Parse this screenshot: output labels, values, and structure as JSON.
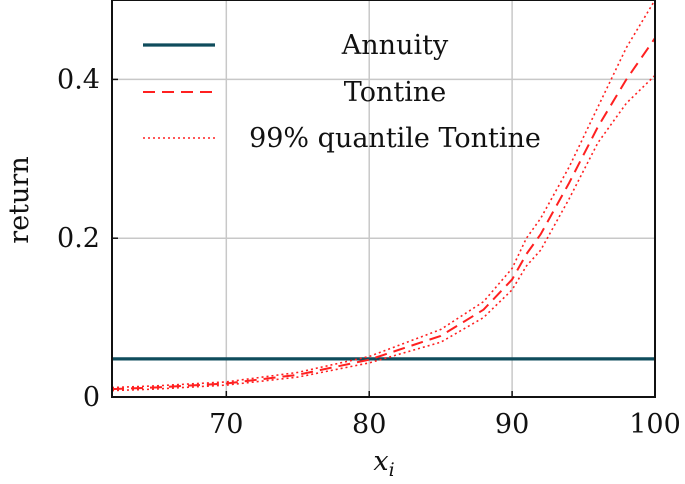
{
  "chart_data": {
    "type": "line",
    "title": "",
    "xlabel": "x_i",
    "xlabel_base": "x",
    "xlabel_sub": "i",
    "ylabel": "return",
    "xlim": [
      62,
      100
    ],
    "ylim": [
      0,
      0.5
    ],
    "xticks": [
      70,
      80,
      90,
      100
    ],
    "xtick_labels": [
      "70",
      "80",
      "90",
      "100"
    ],
    "yticks": [
      0,
      0.2,
      0.4
    ],
    "ytick_labels": [
      "0",
      "0.2",
      "0.4"
    ],
    "grid": true,
    "legend_position": "top",
    "series": [
      {
        "name": "Annuity",
        "style": "solid",
        "color": "#0f4c5c",
        "x": [
          62,
          100
        ],
        "y": [
          0.048,
          0.048
        ]
      },
      {
        "name": "Tontine",
        "style": "dashed",
        "color": "#ff2020",
        "x": [
          62,
          65,
          70,
          75,
          80,
          85,
          88,
          90,
          91,
          92,
          94,
          96,
          98,
          100
        ],
        "y": [
          0.01,
          0.012,
          0.017,
          0.028,
          0.047,
          0.077,
          0.11,
          0.148,
          0.18,
          0.205,
          0.27,
          0.34,
          0.4,
          0.452
        ]
      },
      {
        "name": "99% quantile Tontine",
        "style": "dotted",
        "color": "#ff2020",
        "x": [
          62,
          65,
          70,
          75,
          80,
          85,
          88,
          90,
          91,
          92,
          94,
          96,
          98,
          100
        ],
        "y": [
          0.012,
          0.014,
          0.019,
          0.031,
          0.051,
          0.085,
          0.12,
          0.162,
          0.2,
          0.225,
          0.29,
          0.365,
          0.44,
          0.5
        ]
      },
      {
        "name": "",
        "style": "dotted",
        "color": "#ff2020",
        "x": [
          62,
          65,
          70,
          75,
          80,
          85,
          88,
          90,
          91,
          92,
          94,
          96,
          98,
          100
        ],
        "y": [
          0.008,
          0.01,
          0.015,
          0.025,
          0.043,
          0.069,
          0.1,
          0.135,
          0.165,
          0.185,
          0.25,
          0.32,
          0.37,
          0.405
        ]
      }
    ]
  }
}
